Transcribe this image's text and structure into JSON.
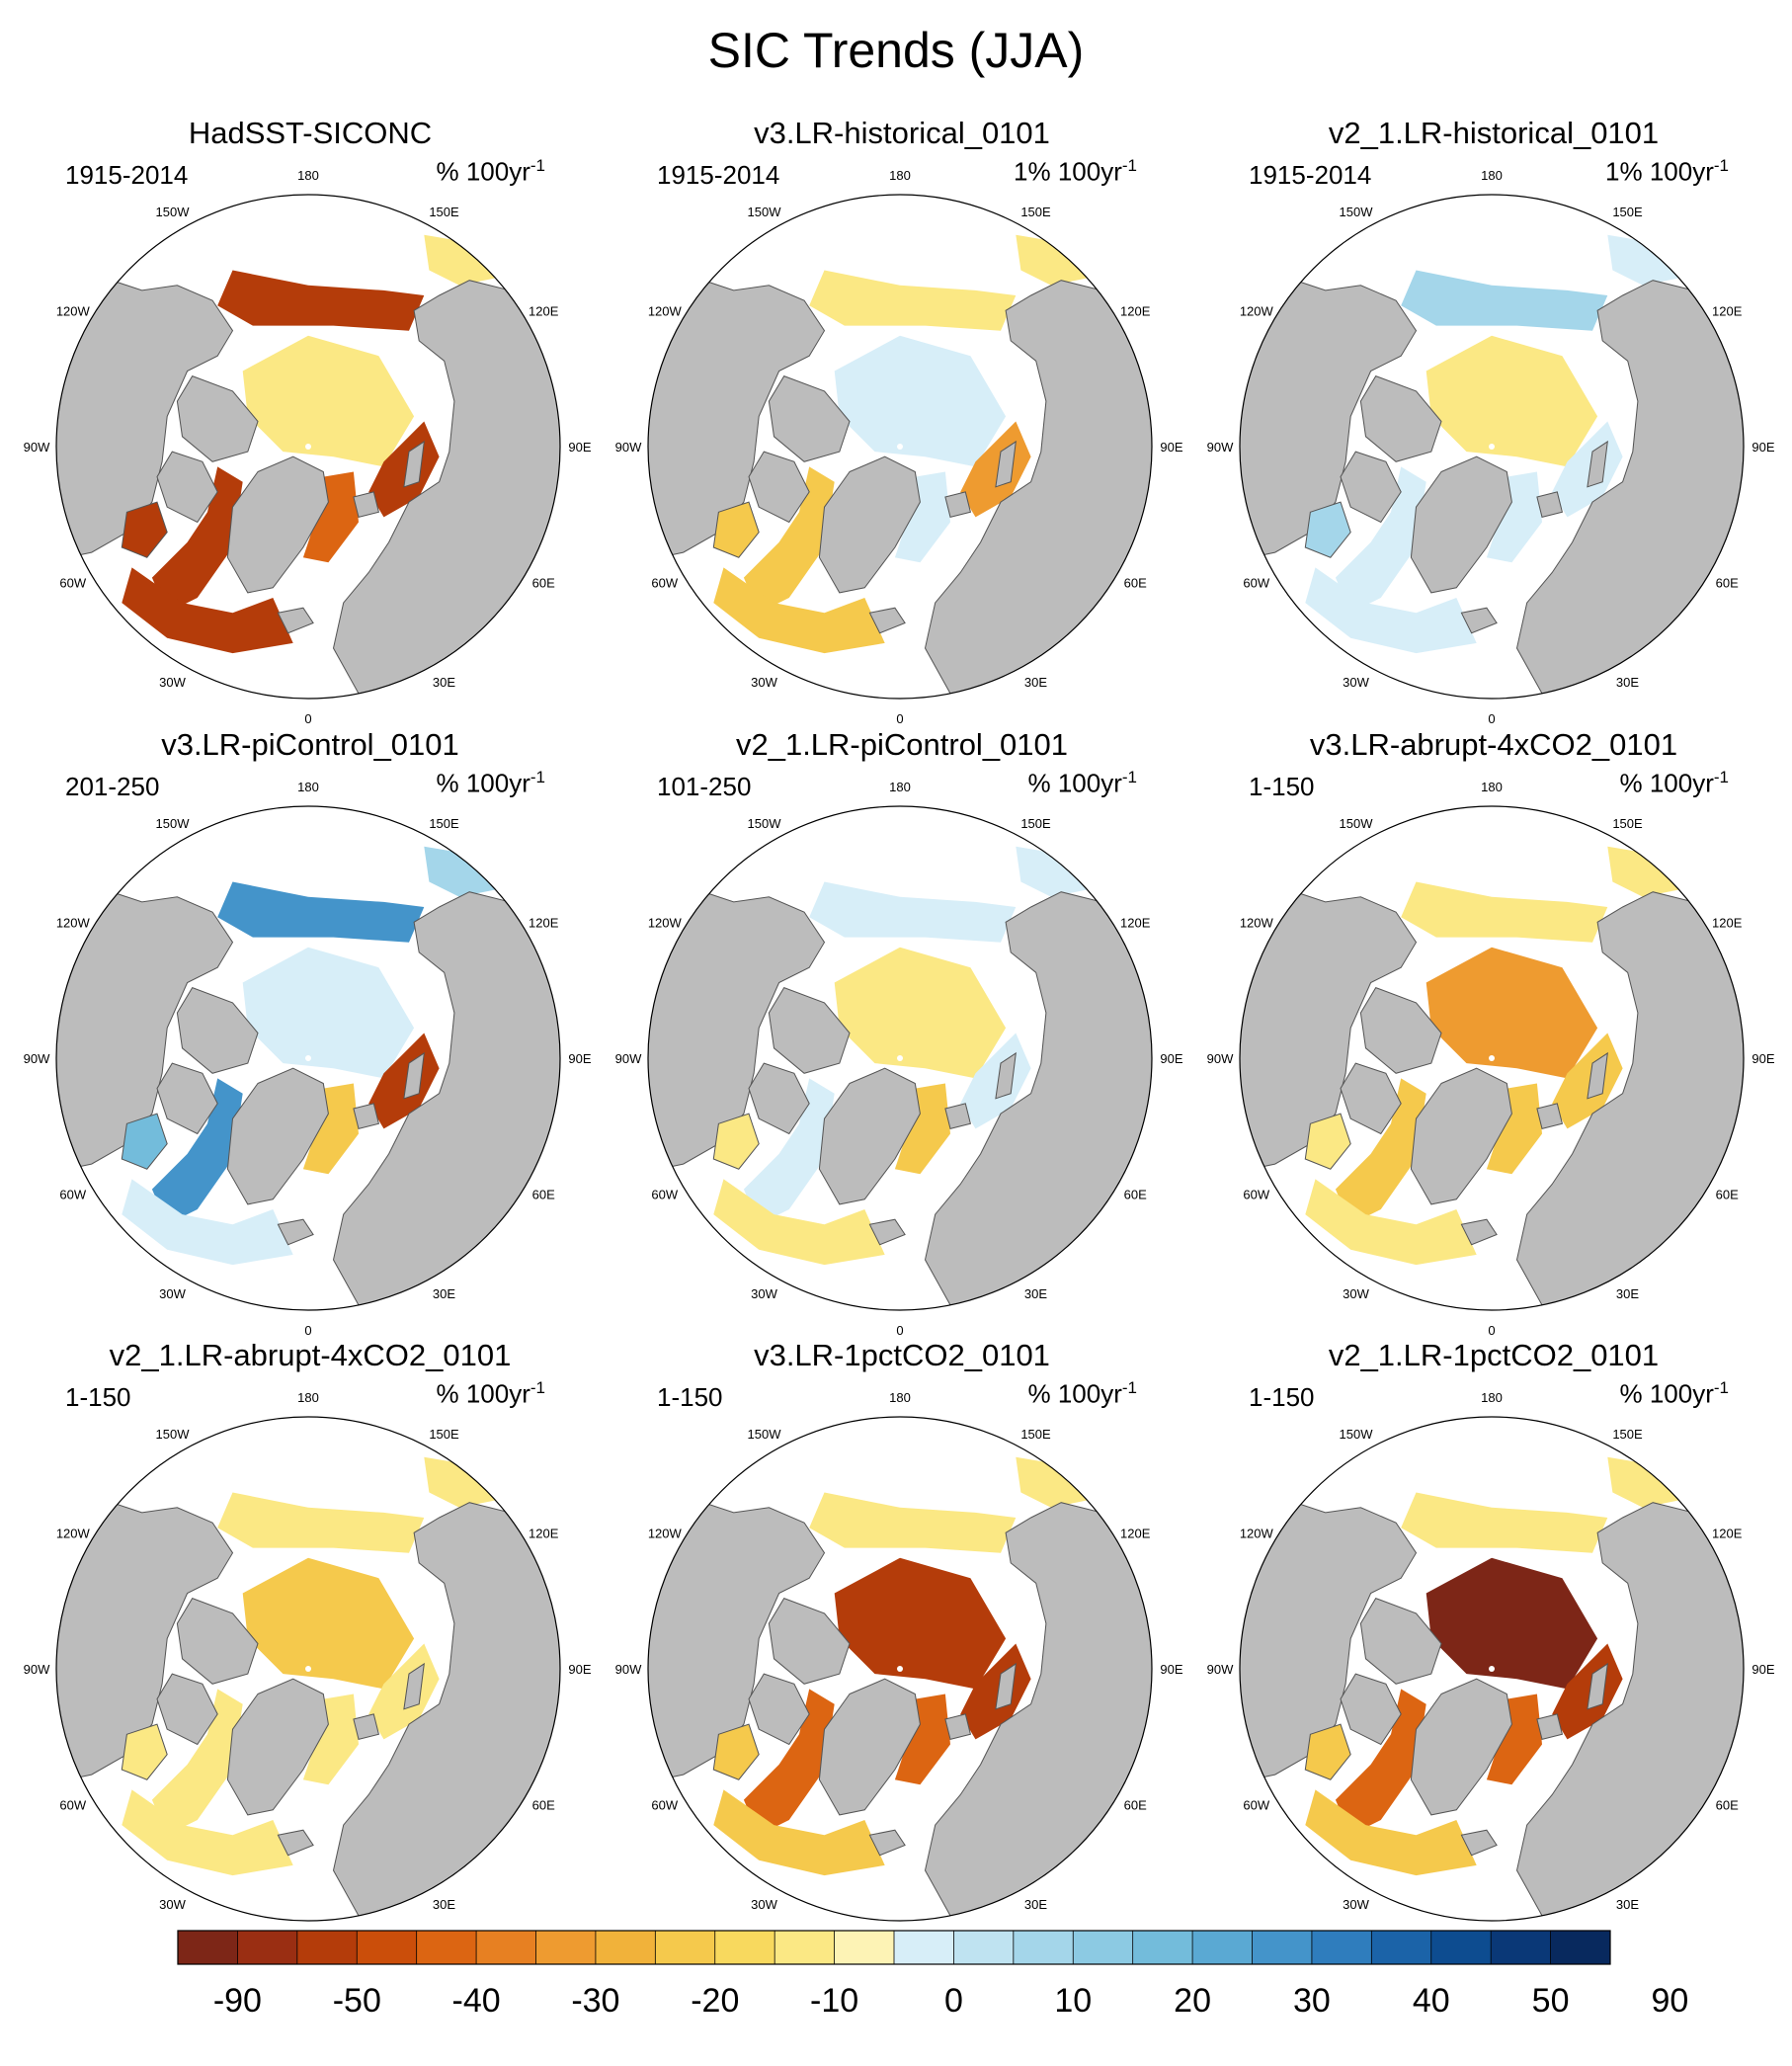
{
  "chart_data": {
    "type": "heatmap",
    "title": "SIC Trends (JJA)",
    "projection": "north-polar-stereographic",
    "map_colors": {
      "land": "#bcbcbc",
      "ocean_missing": "#ffffff",
      "coast": "#555555"
    },
    "lon_labels": [
      "180",
      "150E",
      "120E",
      "90E",
      "60E",
      "30E",
      "0",
      "30W",
      "60W",
      "90W",
      "120W",
      "150W"
    ],
    "panels": [
      {
        "title": "HadSST-SICONC",
        "period": "1915-2014",
        "units_prefix": "% 100yr",
        "units_exp": "-1",
        "trend_bins": {
          "central_arctic": -10,
          "pacific_periphery": -50,
          "atlantic_periphery": -50,
          "barents_kara": -50,
          "hudson_bay": -50,
          "labrador_baffin": -50,
          "greenland_sea": -40,
          "okhotsk_bering": -10
        }
      },
      {
        "title": "v3.LR-historical_0101",
        "period": "1915-2014",
        "units_prefix": "1% 100yr",
        "units_exp": "-1",
        "trend_bins": {
          "central_arctic": 10,
          "pacific_periphery": -10,
          "atlantic_periphery": -20,
          "barents_kara": -30,
          "hudson_bay": -20,
          "labrador_baffin": -20,
          "greenland_sea": 10,
          "okhotsk_bering": -10
        }
      },
      {
        "title": "v2_1.LR-historical_0101",
        "period": "1915-2014",
        "units_prefix": "1% 100yr",
        "units_exp": "-1",
        "trend_bins": {
          "central_arctic": -10,
          "pacific_periphery": 20,
          "atlantic_periphery": 10,
          "barents_kara": 10,
          "hudson_bay": 20,
          "labrador_baffin": 10,
          "greenland_sea": 10,
          "okhotsk_bering": 10
        }
      },
      {
        "title": "v3.LR-piControl_0101",
        "period": "201-250",
        "units_prefix": "% 100yr",
        "units_exp": "-1",
        "trend_bins": {
          "central_arctic": 10,
          "pacific_periphery": 40,
          "atlantic_periphery": 10,
          "barents_kara": -50,
          "hudson_bay": 30,
          "labrador_baffin": 40,
          "greenland_sea": -20,
          "okhotsk_bering": 20
        }
      },
      {
        "title": "v2_1.LR-piControl_0101",
        "period": "101-250",
        "units_prefix": "% 100yr",
        "units_exp": "-1",
        "trend_bins": {
          "central_arctic": -10,
          "pacific_periphery": 10,
          "atlantic_periphery": -10,
          "barents_kara": 10,
          "hudson_bay": -10,
          "labrador_baffin": 10,
          "greenland_sea": -20,
          "okhotsk_bering": 10
        }
      },
      {
        "title": "v3.LR-abrupt-4xCO2_0101",
        "period": "1-150",
        "units_prefix": "% 100yr",
        "units_exp": "-1",
        "trend_bins": {
          "central_arctic": -30,
          "pacific_periphery": -10,
          "atlantic_periphery": -10,
          "barents_kara": -20,
          "hudson_bay": -10,
          "labrador_baffin": -20,
          "greenland_sea": -20,
          "okhotsk_bering": -10
        }
      },
      {
        "title": "v2_1.LR-abrupt-4xCO2_0101",
        "period": "1-150",
        "units_prefix": "% 100yr",
        "units_exp": "-1",
        "trend_bins": {
          "central_arctic": -20,
          "pacific_periphery": -10,
          "atlantic_periphery": -10,
          "barents_kara": -10,
          "hudson_bay": -10,
          "labrador_baffin": -10,
          "greenland_sea": -10,
          "okhotsk_bering": -10
        }
      },
      {
        "title": "v3.LR-1pctCO2_0101",
        "period": "1-150",
        "units_prefix": "% 100yr",
        "units_exp": "-1",
        "trend_bins": {
          "central_arctic": -50,
          "pacific_periphery": -10,
          "atlantic_periphery": -20,
          "barents_kara": -50,
          "hudson_bay": -20,
          "labrador_baffin": -40,
          "greenland_sea": -40,
          "okhotsk_bering": -10
        }
      },
      {
        "title": "v2_1.LR-1pctCO2_0101",
        "period": "1-150",
        "units_prefix": "% 100yr",
        "units_exp": "-1",
        "trend_bins": {
          "central_arctic": -90,
          "pacific_periphery": -10,
          "atlantic_periphery": -20,
          "barents_kara": -50,
          "hudson_bay": -20,
          "labrador_baffin": -40,
          "greenland_sea": -40,
          "okhotsk_bering": -10
        }
      }
    ],
    "colorbar": {
      "colors": [
        "#7d2617",
        "#9a2e12",
        "#b43c0a",
        "#cb4e0a",
        "#dc6512",
        "#e78022",
        "#ee9b30",
        "#f1b23a",
        "#f5c94c",
        "#f8d95e",
        "#fbe884",
        "#fdf3b5",
        "#d7eef8",
        "#bfe3f1",
        "#a4d6ea",
        "#8ccae3",
        "#73bcdb",
        "#5aa9d3",
        "#4494ca",
        "#2f7dbd",
        "#1b63a8",
        "#0d4c90",
        "#0a3877",
        "#08295e"
      ],
      "tick_labels": [
        "-90",
        "-50",
        "-40",
        "-30",
        "-20",
        "-10",
        "0",
        "10",
        "20",
        "30",
        "40",
        "50",
        "90"
      ]
    }
  }
}
